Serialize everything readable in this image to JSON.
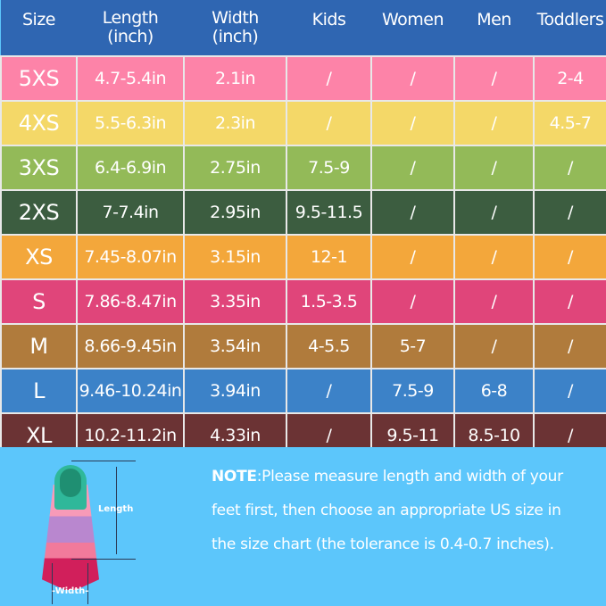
{
  "headers": [
    {
      "l1": "Size",
      "l2": ""
    },
    {
      "l1": "Length",
      "l2": "(inch)"
    },
    {
      "l1": "Width",
      "l2": "(inch)"
    },
    {
      "l1": "Kids",
      "l2": ""
    },
    {
      "l1": "Women",
      "l2": ""
    },
    {
      "l1": "Men",
      "l2": ""
    },
    {
      "l1": "Toddlers",
      "l2": ""
    }
  ],
  "header_color": "#2f66b2",
  "rows": [
    {
      "color": "#fd83a8",
      "cells": [
        "5XS",
        "4.7-5.4in",
        "2.1in",
        "/",
        "/",
        "/",
        "2-4"
      ]
    },
    {
      "color": "#f4d868",
      "cells": [
        "4XS",
        "5.5-6.3in",
        "2.3in",
        "/",
        "/",
        "/",
        "4.5-7"
      ]
    },
    {
      "color": "#93ba58",
      "cells": [
        "3XS",
        "6.4-6.9in",
        "2.75in",
        "7.5-9",
        "/",
        "/",
        "/"
      ]
    },
    {
      "color": "#3c5d40",
      "cells": [
        "2XS",
        "7-7.4in",
        "2.95in",
        "9.5-11.5",
        "/",
        "/",
        "/"
      ]
    },
    {
      "color": "#f3a73b",
      "cells": [
        "XS",
        "7.45-8.07in",
        "3.15in",
        "12-1",
        "/",
        "/",
        "/"
      ]
    },
    {
      "color": "#e0457a",
      "cells": [
        "S",
        "7.86-8.47in",
        "3.35in",
        "1.5-3.5",
        "/",
        "/",
        "/"
      ]
    },
    {
      "color": "#b07b3c",
      "cells": [
        "M",
        "8.66-9.45in",
        "3.54in",
        "4-5.5",
        "5-7",
        "/",
        "/"
      ]
    },
    {
      "color": "#3c82c8",
      "cells": [
        "L",
        "9.46-10.24in",
        "3.94in",
        "/",
        "7.5-9",
        "6-8",
        "/"
      ]
    },
    {
      "color": "#6b3334",
      "cells": [
        "XL",
        "10.2-11.2in",
        "4.33in",
        "/",
        "9.5-11",
        "8.5-10",
        "/"
      ]
    }
  ],
  "note": {
    "label": "NOTE",
    "text": ":Please measure length and width of your feet first, then choose an appropriate US size in the size chart (the tolerance is 0.4-0.7 inches)."
  },
  "diagram": {
    "length_label": "Length",
    "width_label": "-Width-"
  }
}
